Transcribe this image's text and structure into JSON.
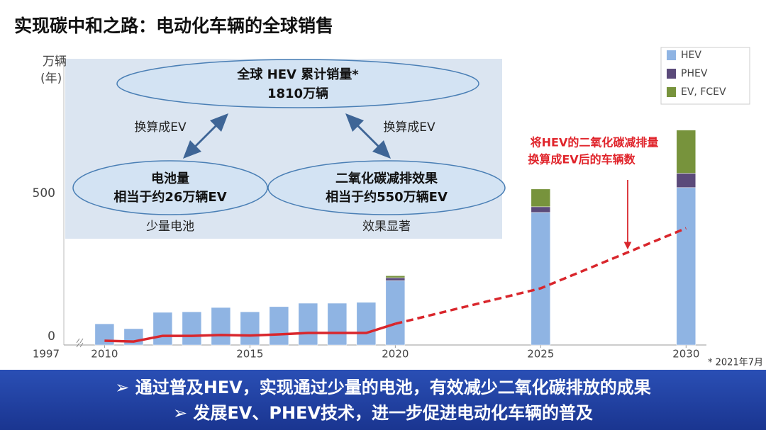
{
  "chart_data": {
    "type": "bar",
    "stacked": true,
    "title": "实现碳中和之路：电动化车辆的全球销售",
    "ylabel": [
      "万辆",
      "(年)"
    ],
    "x": [
      2010,
      2011,
      2012,
      2013,
      2014,
      2015,
      2016,
      2017,
      2018,
      2019,
      2020,
      2025,
      2030
    ],
    "x_start_label": "1997",
    "xlim": [
      2008.6,
      2030.7
    ],
    "xticks": [
      2010,
      2015,
      2020,
      2025,
      2030
    ],
    "ylim": [
      0,
      1000
    ],
    "yticks": [
      0,
      500
    ],
    "grid": false,
    "legend_position": "upper right",
    "series": [
      {
        "name": "HEV",
        "color": "#8fb4e3",
        "values": [
          74,
          57,
          114,
          116,
          131,
          116,
          134,
          146,
          146,
          149,
          225,
          463,
          550
        ]
      },
      {
        "name": "PHEV",
        "color": "#5b4a7a",
        "values": [
          null,
          null,
          null,
          null,
          null,
          null,
          null,
          null,
          null,
          null,
          10,
          20,
          50
        ]
      },
      {
        "name": "EV, FCEV",
        "color": "#77933c",
        "values": [
          null,
          null,
          null,
          null,
          null,
          null,
          null,
          null,
          null,
          null,
          7,
          62,
          151
        ]
      }
    ],
    "lines": [
      {
        "color": "#d9262c",
        "dashed": false,
        "values": [
          15,
          12,
          32,
          32,
          35,
          33,
          37,
          42,
          42,
          42,
          74,
          null,
          null
        ]
      },
      {
        "color": "#d9262c",
        "dashed": true,
        "values": [
          null,
          null,
          null,
          null,
          null,
          null,
          null,
          null,
          null,
          null,
          74,
          198,
          408
        ]
      }
    ],
    "annotation": [
      "将HEV的二氧化碳减排量",
      "换算成EV后的车辆数"
    ],
    "note": "* 2021年7月",
    "inset": {
      "top": [
        "全球 HEV 累计销量*",
        "1810万辆"
      ],
      "left": [
        "电池量",
        "相当于约26万辆EV"
      ],
      "left_caption": "少量电池",
      "right": [
        "二氧化碳减排效果",
        "相当于约550万辆EV"
      ],
      "right_caption": "效果显著",
      "arrow_labels": [
        "换算成EV",
        "换算成EV"
      ]
    },
    "footer": [
      "➢ 通过普及HEV，实现通过少量的电池，有效减少二氧化碳排放的成果",
      "➢ 发展EV、PHEV技术，进一步促进电动化车辆的普及"
    ]
  }
}
